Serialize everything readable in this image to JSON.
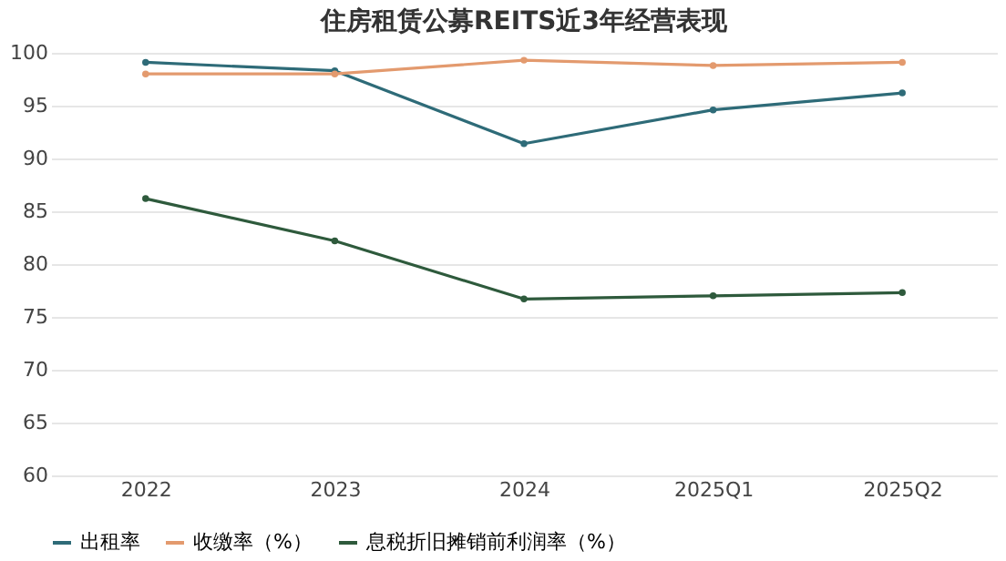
{
  "chart_data": {
    "type": "line",
    "title": "住房租赁公募REITS近3年经营表现",
    "categories": [
      "2022",
      "2023",
      "2024",
      "2025Q1",
      "2025Q2"
    ],
    "series": [
      {
        "name": "出租率",
        "color": "#2e6b78",
        "values": [
          99.1,
          98.3,
          91.4,
          94.6,
          96.2
        ]
      },
      {
        "name": "收缴率（%）",
        "color": "#e39a6e",
        "values": [
          98.0,
          98.0,
          99.3,
          98.8,
          99.1
        ]
      },
      {
        "name": "息税折旧摊销前利润率（%）",
        "color": "#2e5a3c",
        "values": [
          86.2,
          82.2,
          76.7,
          77.0,
          77.3
        ]
      }
    ],
    "ylim": [
      60,
      100
    ],
    "yticks": [
      60,
      65,
      70,
      75,
      80,
      85,
      90,
      95,
      100
    ],
    "grid": "y",
    "legend": "bottom",
    "marker": "circle",
    "line_style": "solid"
  }
}
